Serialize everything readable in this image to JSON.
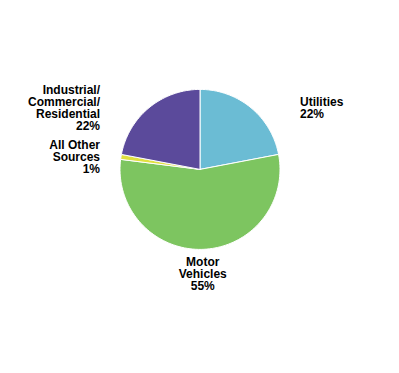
{
  "chart_data": {
    "type": "pie",
    "categories": [
      "Utilities\n22%",
      "Motor\nVehicles\n55%",
      "All Other\nSources\n1%",
      "Industrial/\nCommercial/\nResidential\n22%"
    ],
    "values": [
      22,
      55,
      1,
      22
    ],
    "colors": [
      "#6BBCD4",
      "#7DC560",
      "#E0E040",
      "#5B4A9B"
    ]
  }
}
